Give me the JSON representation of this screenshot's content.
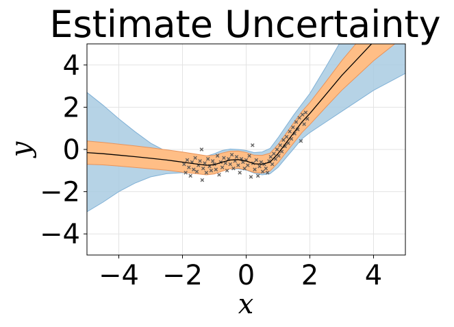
{
  "chart_data": {
    "type": "line",
    "title": "Estimate Uncertainty",
    "xlabel": "x",
    "ylabel": "y",
    "xlim": [
      -5,
      5
    ],
    "ylim": [
      -5,
      5
    ],
    "xticks": [
      -4,
      -2,
      0,
      2,
      4
    ],
    "yticks": [
      -4,
      -2,
      0,
      2,
      4
    ],
    "xtick_labels": [
      "−4",
      "−2",
      "0",
      "2",
      "4"
    ],
    "ytick_labels": [
      "−4",
      "−2",
      "0",
      "2",
      "4"
    ],
    "grid": true,
    "legend": "none",
    "colors": {
      "mean_line": "#000000",
      "inner_band": "#ffbe86",
      "inner_band_edge": "#e8935a",
      "outer_band": "#a9cbe2",
      "outer_band_edge": "#7fb0d6",
      "points": "#555555"
    },
    "x": [
      -5,
      -4.5,
      -4,
      -3.5,
      -3,
      -2.5,
      -2,
      -1.5,
      -1.25,
      -1,
      -0.75,
      -0.5,
      -0.25,
      0,
      0.25,
      0.5,
      0.75,
      1,
      1.25,
      1.5,
      1.75,
      2,
      2.5,
      3,
      3.5,
      4,
      4.5,
      5
    ],
    "mean": [
      -0.15,
      -0.2,
      -0.27,
      -0.34,
      -0.42,
      -0.5,
      -0.6,
      -0.7,
      -0.75,
      -0.72,
      -0.6,
      -0.5,
      -0.48,
      -0.55,
      -0.68,
      -0.7,
      -0.6,
      -0.2,
      0.3,
      0.8,
      1.3,
      1.7,
      2.6,
      3.5,
      4.3,
      5.1,
      5.8,
      6.5
    ],
    "inner_upper": [
      0.4,
      0.33,
      0.25,
      0.17,
      0.08,
      -0.02,
      -0.12,
      -0.24,
      -0.3,
      -0.28,
      -0.17,
      -0.08,
      -0.07,
      -0.14,
      -0.27,
      -0.28,
      -0.18,
      0.23,
      0.75,
      1.28,
      1.8,
      2.22,
      3.2,
      4.2,
      5.1,
      6.0,
      6.8,
      7.6
    ],
    "inner_lower": [
      -0.7,
      -0.73,
      -0.79,
      -0.85,
      -0.92,
      -0.98,
      -1.08,
      -1.16,
      -1.2,
      -1.16,
      -1.03,
      -0.92,
      -0.89,
      -0.96,
      -1.09,
      -1.12,
      -1.02,
      -0.63,
      -0.15,
      0.32,
      0.8,
      1.18,
      2.0,
      2.8,
      3.5,
      4.2,
      4.8,
      5.4
    ],
    "outer_upper": [
      2.7,
      2.1,
      1.45,
      0.85,
      0.3,
      -0.1,
      -0.3,
      -0.35,
      -0.32,
      -0.2,
      -0.05,
      0.02,
      0.0,
      -0.05,
      -0.15,
      -0.12,
      0.05,
      0.55,
      1.1,
      1.65,
      2.15,
      2.65,
      3.9,
      5.2,
      6.4,
      7.6,
      8.8,
      10.0
    ],
    "outer_lower": [
      -2.95,
      -2.5,
      -2.0,
      -1.6,
      -1.3,
      -1.15,
      -1.1,
      -1.1,
      -1.12,
      -1.08,
      -0.98,
      -0.92,
      -0.92,
      -0.98,
      -1.12,
      -1.2,
      -1.15,
      -0.85,
      -0.4,
      0.05,
      0.5,
      0.8,
      1.3,
      1.8,
      2.3,
      2.8,
      3.2,
      3.6
    ],
    "observations": [
      [
        -1.95,
        -0.7
      ],
      [
        -1.9,
        -1.1
      ],
      [
        -1.85,
        -0.5
      ],
      [
        -1.8,
        -0.85
      ],
      [
        -1.75,
        -1.25
      ],
      [
        -1.7,
        -0.6
      ],
      [
        -1.65,
        -0.95
      ],
      [
        -1.6,
        -0.4
      ],
      [
        -1.55,
        -1.05
      ],
      [
        -1.5,
        -0.75
      ],
      [
        -1.45,
        -0.55
      ],
      [
        -1.4,
        0.0
      ],
      [
        -1.38,
        -1.45
      ],
      [
        -1.35,
        -0.9
      ],
      [
        -1.3,
        -0.65
      ],
      [
        -1.25,
        -1.1
      ],
      [
        -1.2,
        -0.45
      ],
      [
        -1.15,
        -0.8
      ],
      [
        -1.1,
        -1.0
      ],
      [
        -1.05,
        -0.55
      ],
      [
        -1.0,
        -0.7
      ],
      [
        -0.95,
        -0.95
      ],
      [
        -0.9,
        -0.3
      ],
      [
        -0.85,
        -1.2
      ],
      [
        -0.8,
        -0.6
      ],
      [
        -0.75,
        -0.85
      ],
      [
        -0.7,
        -0.4
      ],
      [
        -0.65,
        -0.65
      ],
      [
        -0.6,
        -1.0
      ],
      [
        -0.55,
        -0.45
      ],
      [
        -0.5,
        -0.7
      ],
      [
        -0.45,
        -0.25
      ],
      [
        -0.4,
        -0.9
      ],
      [
        -0.35,
        -0.55
      ],
      [
        -0.3,
        -0.35
      ],
      [
        -0.25,
        -0.75
      ],
      [
        -0.2,
        -1.1
      ],
      [
        -0.15,
        -0.45
      ],
      [
        -0.1,
        -0.6
      ],
      [
        -0.05,
        -0.9
      ],
      [
        0.0,
        -0.5
      ],
      [
        0.05,
        -0.75
      ],
      [
        0.1,
        -0.3
      ],
      [
        0.15,
        -1.3
      ],
      [
        0.2,
        0.2
      ],
      [
        0.22,
        -0.65
      ],
      [
        0.27,
        -0.95
      ],
      [
        0.32,
        -0.5
      ],
      [
        0.37,
        -1.25
      ],
      [
        0.42,
        -0.8
      ],
      [
        0.47,
        -0.6
      ],
      [
        0.52,
        -1.05
      ],
      [
        0.57,
        -0.7
      ],
      [
        0.62,
        -0.9
      ],
      [
        0.67,
        -1.1
      ],
      [
        0.72,
        -0.55
      ],
      [
        0.77,
        -0.35
      ],
      [
        0.82,
        -0.7
      ],
      [
        0.87,
        -0.2
      ],
      [
        0.92,
        -0.45
      ],
      [
        0.97,
        0.0
      ],
      [
        1.02,
        -0.3
      ],
      [
        1.07,
        0.2
      ],
      [
        1.12,
        -0.1
      ],
      [
        1.17,
        0.45
      ],
      [
        1.22,
        0.15
      ],
      [
        1.27,
        0.6
      ],
      [
        1.32,
        0.3
      ],
      [
        1.37,
        0.85
      ],
      [
        1.42,
        0.5
      ],
      [
        1.47,
        1.05
      ],
      [
        1.52,
        0.75
      ],
      [
        1.57,
        1.3
      ],
      [
        1.62,
        0.95
      ],
      [
        1.67,
        1.5
      ],
      [
        1.72,
        0.4
      ],
      [
        1.77,
        1.65
      ],
      [
        1.82,
        1.2
      ],
      [
        1.87,
        1.75
      ],
      [
        1.92,
        1.45
      ]
    ]
  }
}
